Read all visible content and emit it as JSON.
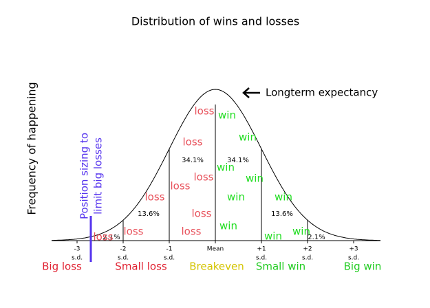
{
  "title": "Distribution of wins and losses",
  "y_axis_label": "Frequency of happening",
  "annotation": "Longterm expectancy",
  "side_note": [
    "Position sizing to",
    "limit big losses"
  ],
  "x_ticks": [
    {
      "label": "-3",
      "unit": "s.d."
    },
    {
      "label": "-2",
      "unit": "s.d."
    },
    {
      "label": "-1",
      "unit": "s.d."
    },
    {
      "label": "Mean"
    },
    {
      "label": "+1",
      "unit": "s.d."
    },
    {
      "label": "+2",
      "unit": "s.d."
    },
    {
      "label": "+3",
      "unit": "s.d."
    }
  ],
  "percentages": [
    "2.1%",
    "13.6%",
    "34.1%",
    "34.1%",
    "13.6%",
    "2.1%"
  ],
  "loss_labels": [
    "loss",
    "loss",
    "loss",
    "loss",
    "loss",
    "loss",
    "loss",
    "loss",
    "loss"
  ],
  "win_labels": [
    "win",
    "win",
    "win",
    "win",
    "win",
    "win",
    "win",
    "win",
    "win"
  ],
  "outcome_labels": [
    "Big loss",
    "Small loss",
    "Breakeven",
    "Small win",
    "Big win"
  ]
}
